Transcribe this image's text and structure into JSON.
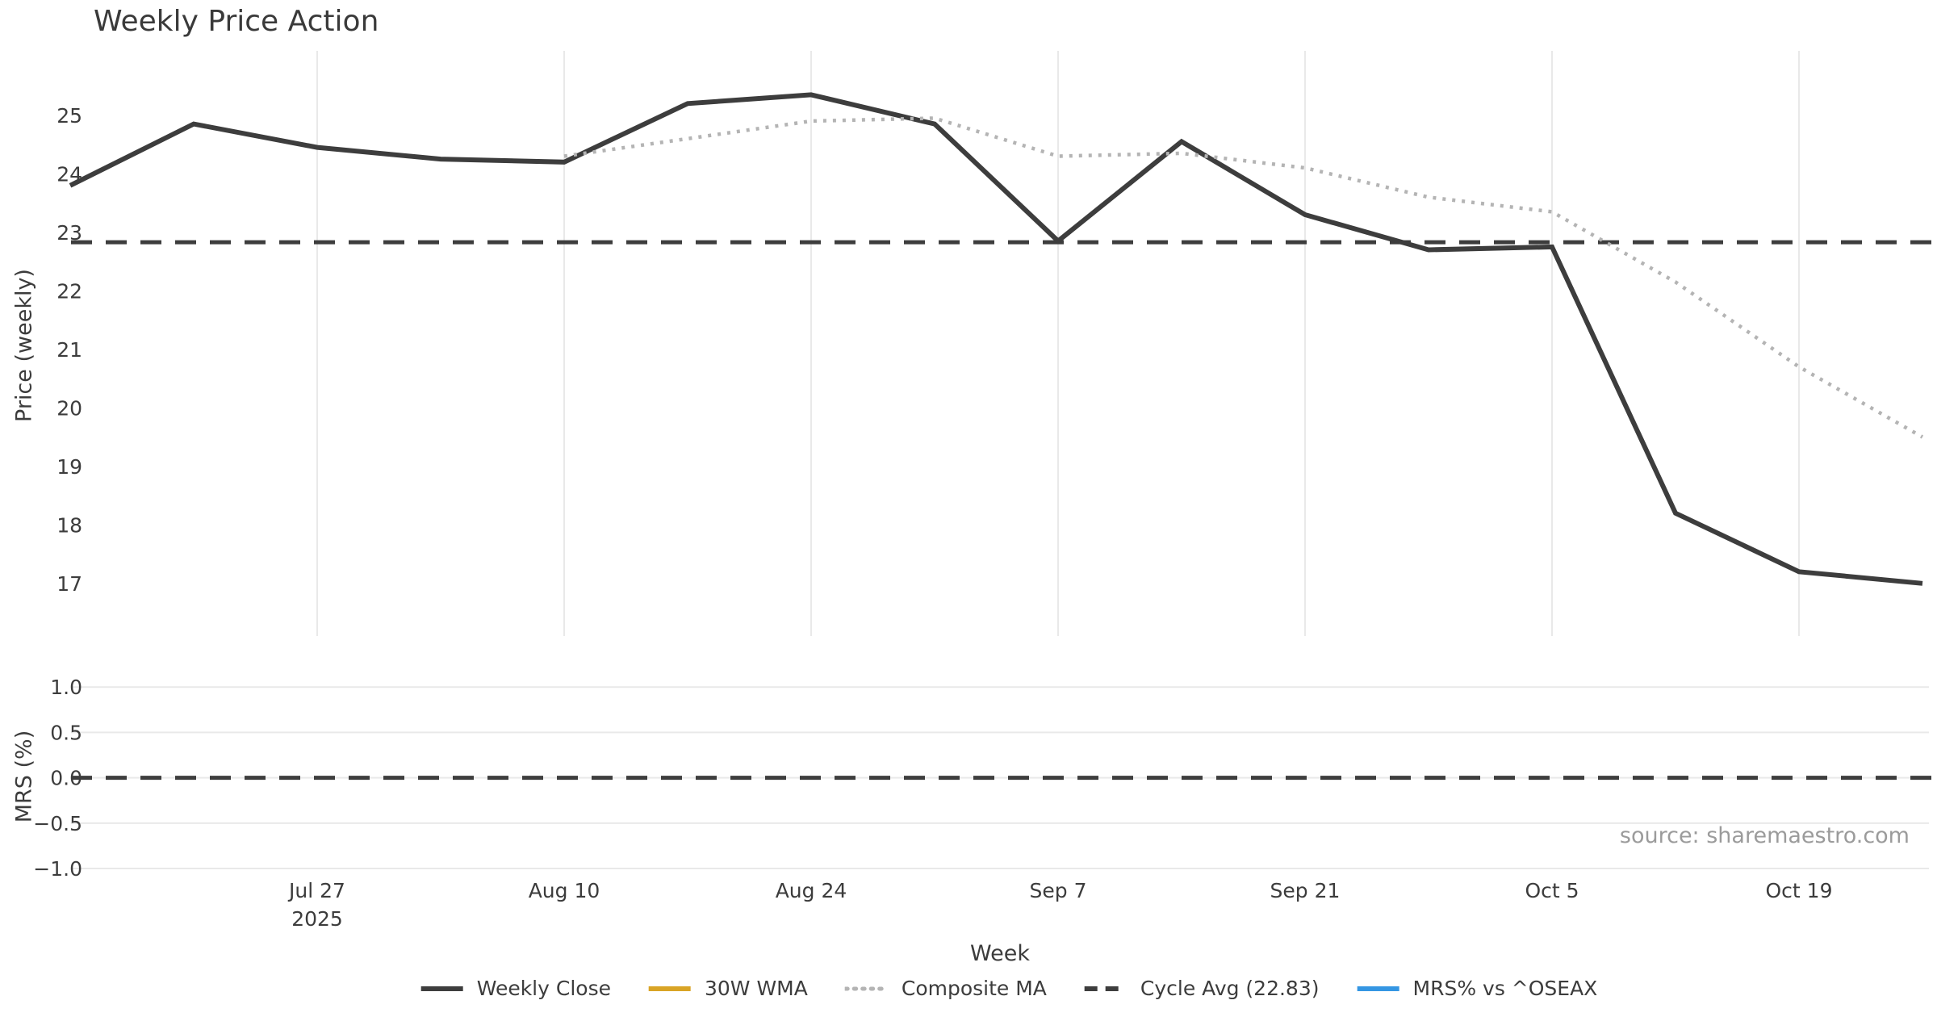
{
  "title": "Weekly Price Action",
  "source_note": "source: sharemaestro.com",
  "chart_data": {
    "type": "line",
    "title": "Weekly Price Action",
    "xlabel": "Week",
    "x": [
      "Jul 13",
      "Jul 20",
      "Jul 27",
      "Aug 3",
      "Aug 10",
      "Aug 17",
      "Aug 24",
      "Aug 31",
      "Sep 7",
      "Sep 14",
      "Sep 21",
      "Sep 28",
      "Oct 5",
      "Oct 12",
      "Oct 19",
      "Oct 26"
    ],
    "xticks": [
      {
        "index": 2,
        "label": "Jul 27",
        "sub": "2025"
      },
      {
        "index": 4,
        "label": "Aug 10"
      },
      {
        "index": 6,
        "label": "Aug 24"
      },
      {
        "index": 8,
        "label": "Sep 7"
      },
      {
        "index": 10,
        "label": "Sep 21"
      },
      {
        "index": 12,
        "label": "Oct 5"
      },
      {
        "index": 14,
        "label": "Oct 19"
      }
    ],
    "panels": [
      {
        "ylabel": "Price (weekly)",
        "ylim": [
          16.1,
          26.1
        ],
        "yticks": [
          25,
          24,
          23,
          22,
          21,
          20,
          19,
          18,
          17
        ],
        "ytick_labels": [
          "25",
          "24",
          "23",
          "22",
          "21",
          "20",
          "19",
          "18",
          "17"
        ],
        "grid": "vertical",
        "hline": {
          "name": "Cycle Avg",
          "value": 22.83,
          "style": "dashed",
          "color": "#3d3d3d"
        },
        "series": [
          {
            "name": "Weekly Close",
            "style": "solid",
            "color": "#3d3d3d",
            "values": [
              23.8,
              24.85,
              24.45,
              24.25,
              24.2,
              25.2,
              25.35,
              24.85,
              22.85,
              24.55,
              23.3,
              22.7,
              22.75,
              18.2,
              17.2,
              17.0
            ]
          },
          {
            "name": "30W WMA",
            "style": "solid",
            "color": "#d9a425",
            "values": [
              null,
              null,
              null,
              null,
              null,
              null,
              null,
              null,
              null,
              null,
              null,
              null,
              null,
              null,
              null,
              null
            ]
          },
          {
            "name": "Composite MA",
            "style": "dotted",
            "color": "#b4b4b4",
            "values": [
              null,
              null,
              null,
              null,
              24.3,
              24.6,
              24.9,
              24.95,
              24.3,
              24.35,
              24.1,
              23.6,
              23.35,
              22.15,
              20.7,
              19.5
            ]
          }
        ]
      },
      {
        "ylabel": "MRS (%)",
        "ylim": [
          -1.08,
          1.1
        ],
        "yticks": [
          1.0,
          0.5,
          0.0,
          -0.5,
          -1.0
        ],
        "ytick_labels": [
          "1.0",
          "0.5",
          "0.0",
          "−0.5",
          "−1.0"
        ],
        "grid": "horizontal",
        "hline": {
          "name": "Zero line",
          "value": 0.0,
          "style": "dashed",
          "color": "#3d3d3d"
        },
        "series": [
          {
            "name": "MRS% vs ^OSEAX",
            "style": "solid",
            "color": "#3496e3",
            "values": [
              null,
              null,
              null,
              null,
              null,
              null,
              null,
              null,
              null,
              null,
              null,
              null,
              null,
              null,
              null,
              null
            ]
          }
        ]
      }
    ],
    "legend": [
      {
        "label": "Weekly Close",
        "color": "#3d3d3d",
        "style": "solid"
      },
      {
        "label": "30W WMA",
        "color": "#d9a425",
        "style": "solid"
      },
      {
        "label": "Composite MA",
        "color": "#b4b4b4",
        "style": "dotted"
      },
      {
        "label": "Cycle Avg (22.83)",
        "color": "#3d3d3d",
        "style": "dashed"
      },
      {
        "label": "MRS% vs ^OSEAX",
        "color": "#3496e3",
        "style": "solid"
      }
    ],
    "colors": {
      "background": "#ffffff",
      "grid": "#e9e9e9",
      "text": "#3c3c3c",
      "source_text": "#9b9b9b"
    }
  }
}
